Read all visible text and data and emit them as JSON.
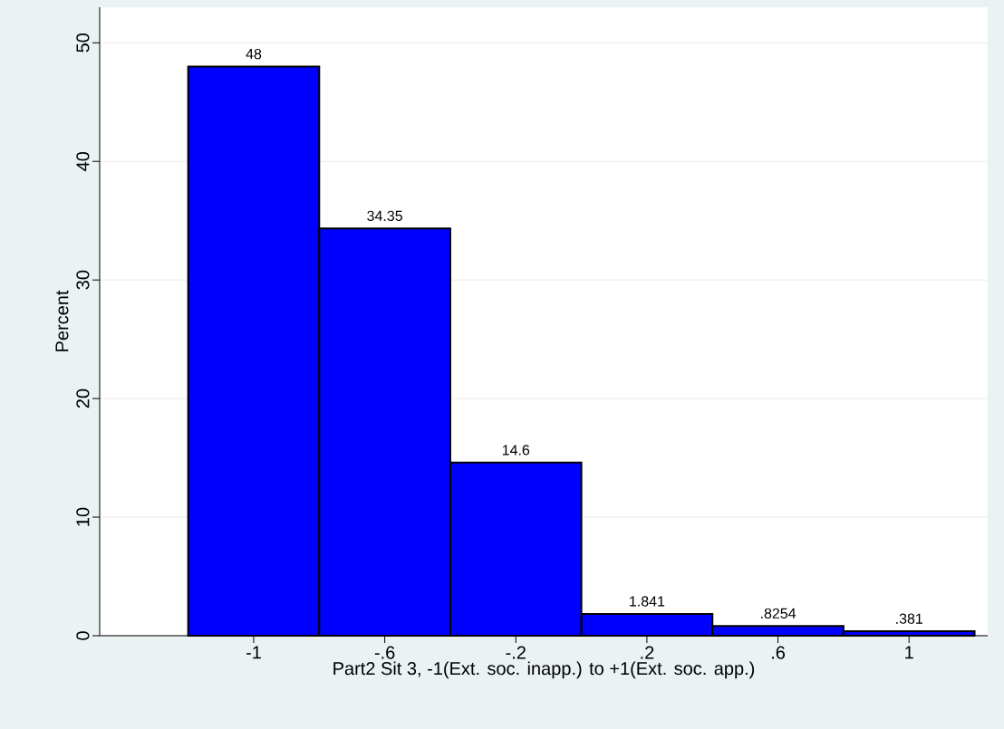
{
  "chart_data": {
    "type": "histogram",
    "xlabel": "Part2 Sit 3, -1(Ext. soc. inapp.) to +1(Ext. soc. app.)",
    "ylabel": "Percent",
    "bins": [
      -1.2,
      -0.8,
      -0.4,
      0,
      0.4,
      0.8,
      1.2
    ],
    "values": [
      48,
      34.35,
      14.6,
      1.841,
      0.8254,
      0.381
    ],
    "value_labels": [
      "48",
      "34.35",
      "14.6",
      "1.841",
      ".8254",
      ".381"
    ],
    "color": "#0000ff",
    "xlim": [
      -1.47,
      1.24
    ],
    "ylim": [
      0,
      53
    ],
    "xticks": [
      {
        "value": -1,
        "label": "-1"
      },
      {
        "value": -0.6,
        "label": "-.6"
      },
      {
        "value": -0.2,
        "label": "-.2"
      },
      {
        "value": 0.2,
        "label": ".2"
      },
      {
        "value": 0.6,
        "label": ".6"
      },
      {
        "value": 1,
        "label": "1"
      }
    ],
    "yticks": [
      0,
      10,
      20,
      30,
      40,
      50
    ],
    "grid": "y"
  }
}
